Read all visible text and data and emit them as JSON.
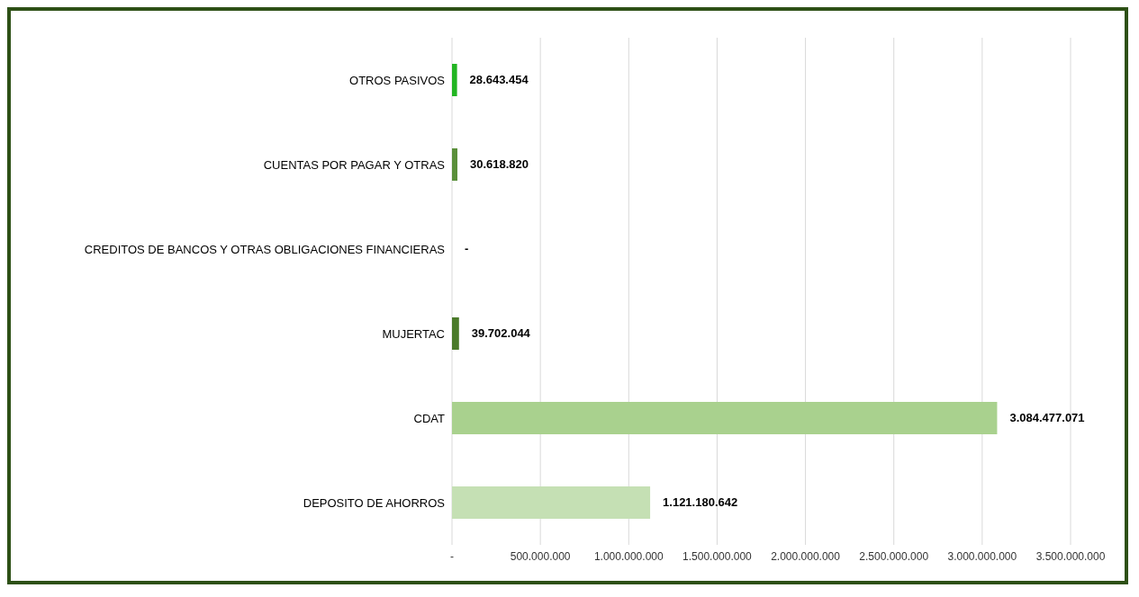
{
  "chart_data": {
    "type": "bar",
    "orientation": "horizontal",
    "categories": [
      "OTROS PASIVOS",
      "CUENTAS POR PAGAR Y OTRAS",
      "CREDITOS DE BANCOS Y OTRAS OBLIGACIONES FINANCIERAS",
      "MUJERTAC",
      "CDAT",
      "DEPOSITO DE AHORROS"
    ],
    "values": [
      28643454,
      30618820,
      0,
      39702044,
      3084477071,
      1121180642
    ],
    "colors": [
      "#22b522",
      "#5a8f3a",
      "#2d4a1e",
      "#4a7a2a",
      "#a9d18e",
      "#c5e0b4"
    ],
    "value_labels": [
      "28.643.454",
      "30.618.820",
      "-",
      "39.702.044",
      "3.084.477.071",
      "1.121.180.642"
    ],
    "xlim": [
      0,
      3500000000
    ],
    "xticks": [
      {
        "value": 0,
        "label": "-"
      },
      {
        "value": 500000000,
        "label": "500.000.000"
      },
      {
        "value": 1000000000,
        "label": "1.000.000.000"
      },
      {
        "value": 1500000000,
        "label": "1.500.000.000"
      },
      {
        "value": 2000000000,
        "label": "2.000.000.000"
      },
      {
        "value": 2500000000,
        "label": "2.500.000.000"
      },
      {
        "value": 3000000000,
        "label": "3.000.000.000"
      },
      {
        "value": 3500000000,
        "label": "3.500.000.000"
      }
    ],
    "grid": "x",
    "legend": false
  }
}
